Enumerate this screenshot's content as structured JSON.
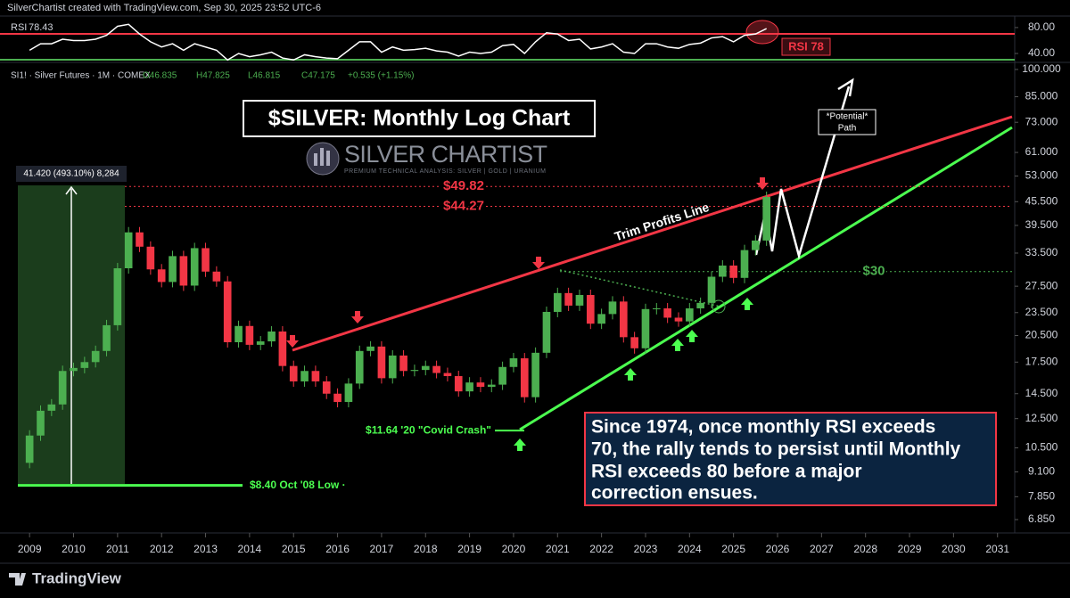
{
  "header": {
    "credit": "SilverChartist created with TradingView.com, Sep 30, 2025 23:52 UTC-6",
    "symbol": "SI1! · Silver Futures · 1M · COMEX",
    "ohlc": [
      "O46.835",
      "H47.825",
      "L46.815",
      "C47.175",
      "+0.535 (+1.15%)"
    ]
  },
  "chart_data": [
    {
      "type": "candle",
      "title": "$SILVER: Monthly Log Chart",
      "logo": "SILVER CHARTIST",
      "logo_tagline": "PREMIUM TECHNICAL ANALYSIS: SILVER | GOLD | URANIUM",
      "up_color": "#4caf50",
      "down_color": "#f23645",
      "log_scale": true,
      "x": [
        2009,
        2009.25,
        2009.5,
        2009.75,
        2010,
        2010.25,
        2010.5,
        2010.75,
        2011,
        2011.25,
        2011.5,
        2011.75,
        2012,
        2012.25,
        2012.5,
        2012.75,
        2013,
        2013.25,
        2013.5,
        2013.75,
        2014,
        2014.25,
        2014.5,
        2014.75,
        2015,
        2015.25,
        2015.5,
        2015.75,
        2016,
        2016.25,
        2016.5,
        2016.75,
        2017,
        2017.25,
        2017.5,
        2017.75,
        2018,
        2018.25,
        2018.5,
        2018.75,
        2019,
        2019.25,
        2019.5,
        2019.75,
        2020,
        2020.25,
        2020.5,
        2020.75,
        2021,
        2021.25,
        2021.5,
        2021.75,
        2022,
        2022.25,
        2022.5,
        2022.75,
        2023,
        2023.25,
        2023.5,
        2023.75,
        2024,
        2024.25,
        2024.5,
        2024.75,
        2025,
        2025.25,
        2025.5,
        2025.75
      ],
      "values": [
        11.3,
        13.1,
        13.6,
        16.6,
        16.9,
        17.5,
        18.7,
        21.8,
        30.6,
        37.9,
        34.8,
        30.4,
        28.2,
        32.9,
        27.6,
        34.5,
        30.0,
        28.3,
        19.7,
        21.7,
        19.4,
        19.8,
        21.0,
        17.1,
        15.6,
        16.6,
        15.6,
        14.5,
        13.8,
        15.4,
        18.7,
        19.2,
        15.9,
        18.2,
        16.6,
        16.7,
        17.1,
        16.4,
        16.1,
        14.7,
        15.5,
        15.1,
        15.3,
        17.0,
        17.9,
        14.2,
        18.5,
        23.6,
        26.4,
        24.5,
        26.1,
        22.0,
        23.3,
        25.1,
        20.3,
        19.0,
        24.0,
        24.1,
        22.8,
        22.3,
        24.1,
        24.9,
        29.1,
        31.1,
        28.9,
        34.1,
        36.1,
        46.8
      ],
      "xlim": [
        2008.49,
        2031.33
      ],
      "xticks": [
        2009,
        2010,
        2011,
        2012,
        2013,
        2014,
        2015,
        2016,
        2017,
        2018,
        2019,
        2020,
        2021,
        2022,
        2023,
        2024,
        2025,
        2026,
        2027,
        2028,
        2029,
        2030,
        2031
      ],
      "ylim": [
        6.36,
        104.3
      ],
      "yticks": [
        {
          "value": 100,
          "label": "100.000"
        },
        {
          "value": 85,
          "label": "85.000"
        },
        {
          "value": 73,
          "label": "73.000"
        },
        {
          "value": 61,
          "label": "61.000"
        },
        {
          "value": 53,
          "label": "53.000"
        },
        {
          "value": 45.5,
          "label": "45.500"
        },
        {
          "value": 39.5,
          "label": "39.500"
        },
        {
          "value": 33.5,
          "label": "33.500"
        },
        {
          "value": 27.5,
          "label": "27.500"
        },
        {
          "value": 23.5,
          "label": "23.500"
        },
        {
          "value": 20.5,
          "label": "20.500"
        },
        {
          "value": 17.5,
          "label": "17.500"
        },
        {
          "value": 14.5,
          "label": "14.500"
        },
        {
          "value": 12.5,
          "label": "12.500"
        },
        {
          "value": 10.5,
          "label": "10.500"
        },
        {
          "value": 9.1,
          "label": "9.100"
        },
        {
          "value": 7.85,
          "label": "7.850"
        },
        {
          "value": 6.85,
          "label": "6.850"
        }
      ],
      "levels": [
        {
          "value": 49.82,
          "label": "$49.82",
          "color": "#f23645"
        },
        {
          "value": 44.27,
          "label": "$44.27",
          "color": "#f23645"
        },
        {
          "value": 30,
          "label": "$30",
          "color": "#4caf50"
        }
      ],
      "lows": [
        {
          "value": 11.64,
          "label": "$11.64 '20 \"Covid Crash\""
        },
        {
          "value": 8.4,
          "label": "$8.40 Oct '08 Low ·"
        }
      ],
      "annotations": {
        "measure": "41.420 (493.10%) 8,284",
        "trim": "Trim Profits Line",
        "path": [
          "*Potential*",
          "Path"
        ],
        "note": [
          "Since 1974, once monthly RSI exceeds",
          "70, the rally tends to persist until Monthly",
          "RSI exceeds 80 before a major",
          "correction ensues."
        ]
      }
    },
    {
      "type": "line",
      "name": "RSI",
      "last_label": "78.43",
      "badge": "RSI 78",
      "color": "#ffffff",
      "values": [
        45,
        55,
        55,
        62,
        60,
        60,
        62,
        68,
        82,
        85,
        70,
        58,
        50,
        55,
        45,
        55,
        50,
        45,
        30,
        40,
        35,
        38,
        42,
        33,
        30,
        38,
        35,
        33,
        32,
        45,
        58,
        58,
        42,
        50,
        45,
        46,
        48,
        44,
        42,
        36,
        42,
        40,
        42,
        52,
        54,
        40,
        58,
        72,
        70,
        60,
        62,
        47,
        50,
        55,
        42,
        40,
        55,
        55,
        50,
        48,
        54,
        56,
        64,
        66,
        58,
        68,
        70,
        78.43
      ],
      "ylim": [
        29,
        95
      ],
      "yticks": [
        {
          "value": 80,
          "label": "80.00"
        },
        {
          "value": 40,
          "label": "40.00"
        }
      ]
    }
  ],
  "footer": {
    "brand": "TradingView"
  }
}
